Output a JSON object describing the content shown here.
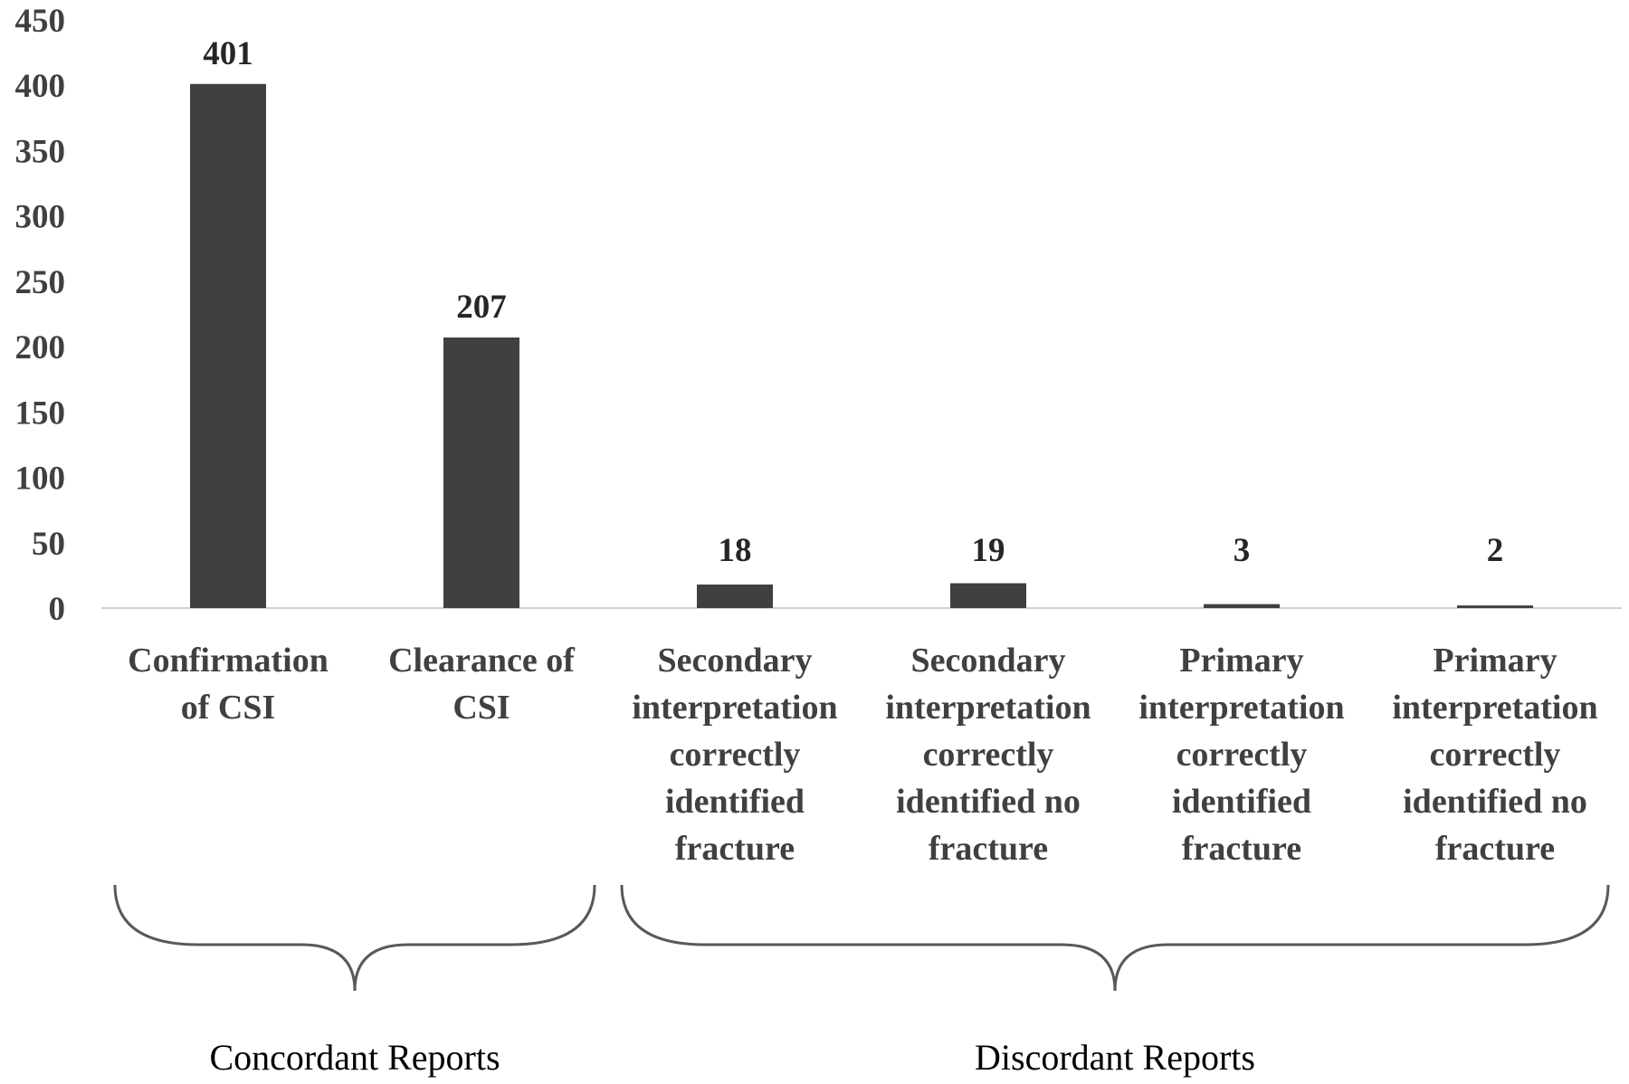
{
  "chart_data": {
    "type": "bar",
    "categories": [
      [
        "Confirmation",
        "of CSI"
      ],
      [
        "Clearance of",
        "CSI"
      ],
      [
        "Secondary",
        "interpretation",
        "correctly",
        "identified",
        "fracture"
      ],
      [
        "Secondary",
        "interpretation",
        "correctly",
        "identified no",
        "fracture"
      ],
      [
        "Primary",
        "interpretation",
        "correctly",
        "identified",
        "fracture"
      ],
      [
        "Primary",
        "interpretation",
        "correctly",
        "identified no",
        "fracture"
      ]
    ],
    "values": [
      401,
      207,
      18,
      19,
      3,
      2
    ],
    "data_labels": [
      "401",
      "207",
      "18",
      "19",
      "3",
      "2"
    ],
    "yticks": [
      "0",
      "50",
      "100",
      "150",
      "200",
      "250",
      "300",
      "350",
      "400",
      "450"
    ],
    "ylim": [
      0,
      450
    ],
    "groups": [
      {
        "label": "Concordant Reports",
        "start_index": 0,
        "end_index": 1
      },
      {
        "label": "Discordant Reports",
        "start_index": 2,
        "end_index": 5
      }
    ],
    "bar_color": "#404040",
    "grid": false,
    "legend": "none"
  }
}
